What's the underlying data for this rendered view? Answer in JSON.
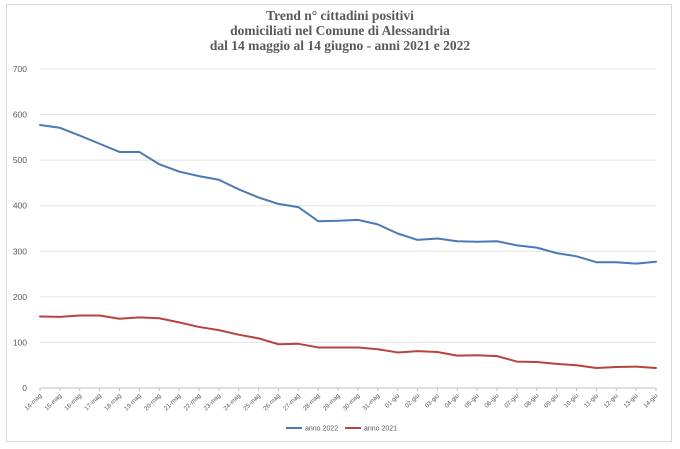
{
  "chart_data": {
    "type": "line",
    "title_lines": [
      "Trend n° cittadini positivi",
      "domiciliati nel Comune di Alessandria",
      "dal 14 maggio al 14 giugno - anni 2021 e 2022"
    ],
    "xlabel": "",
    "ylabel": "",
    "ylim": [
      0,
      700
    ],
    "yticks": [
      0,
      100,
      200,
      300,
      400,
      500,
      600,
      700
    ],
    "grid": true,
    "legend_position": "bottom",
    "categories": [
      "14-mag",
      "15-mag",
      "16-mag",
      "17-mag",
      "18-mag",
      "19-mag",
      "20-mag",
      "21-mag",
      "22-mag",
      "23-mag",
      "24-mag",
      "25-mag",
      "26-mag",
      "27-mag",
      "28-mag",
      "29-mag",
      "30-mag",
      "31-mag",
      "01-giu",
      "02-giu",
      "03-giu",
      "04-giu",
      "05-giu",
      "06-giu",
      "07-giu",
      "08-giu",
      "09-giu",
      "10-giu",
      "11-giu",
      "12-giu",
      "13-giu",
      "14-giu"
    ],
    "series": [
      {
        "name": "anno 2022",
        "color": "#4a7ab5",
        "values": [
          577,
          571,
          554,
          536,
          518,
          518,
          491,
          475,
          465,
          457,
          436,
          418,
          404,
          397,
          366,
          367,
          369,
          359,
          339,
          325,
          328,
          322,
          321,
          322,
          313,
          308,
          296,
          289,
          276,
          276,
          273,
          277
        ]
      },
      {
        "name": "anno 2021",
        "color": "#b5433f",
        "values": [
          157,
          156,
          159,
          159,
          152,
          155,
          153,
          144,
          134,
          127,
          117,
          109,
          96,
          97,
          89,
          89,
          89,
          85,
          78,
          81,
          79,
          71,
          72,
          70,
          58,
          57,
          53,
          50,
          44,
          46,
          47,
          44
        ]
      }
    ]
  }
}
